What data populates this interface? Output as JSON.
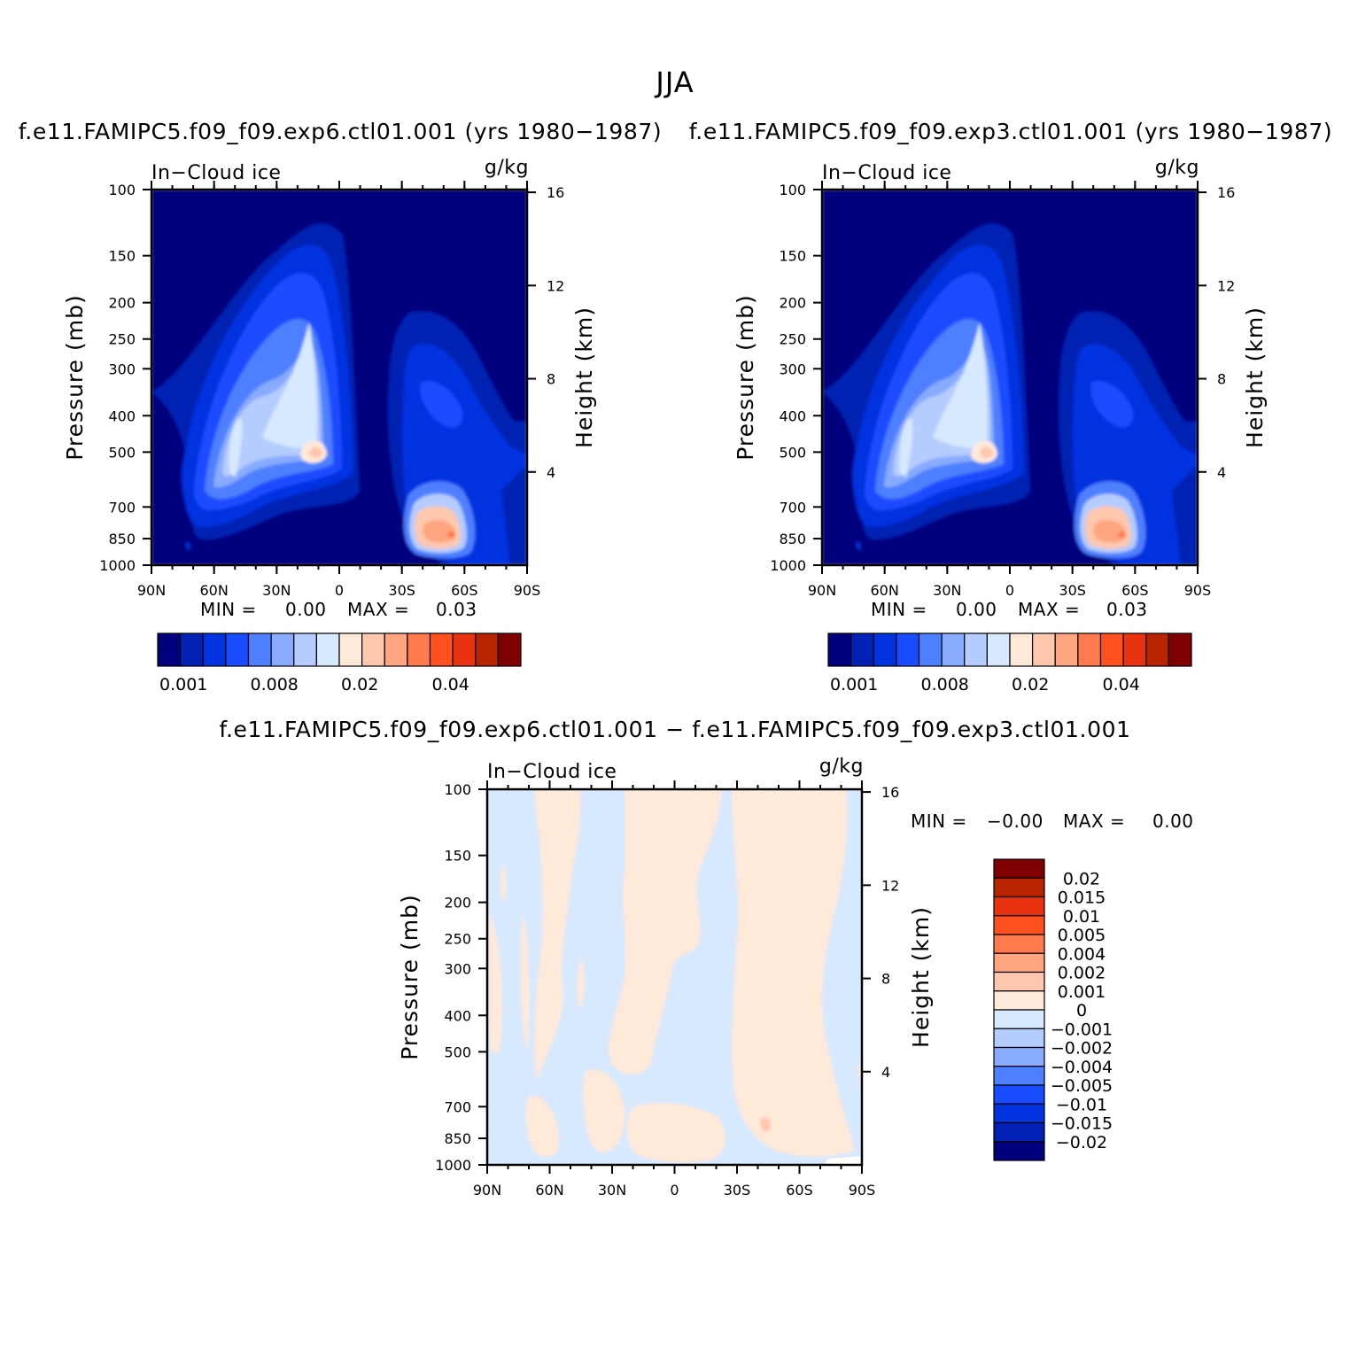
{
  "figure_title": "JJA",
  "panel_titles": [
    "f.e11.FAMIPC5.f09_f09.exp6.ctl01.001 (yrs 1980−1987)",
    "f.e11.FAMIPC5.f09_f09.exp3.ctl01.001 (yrs 1980−1987)"
  ],
  "diff_title": "f.e11.FAMIPC5.f09_f09.exp6.ctl01.001 − f.e11.FAMIPC5.f09_f09.exp3.ctl01.001",
  "panels": [
    {
      "stats": {
        "min_label": "MIN =",
        "min_value": "0.00",
        "max_label": "MAX =",
        "max_value": "0.03"
      }
    },
    {
      "stats": {
        "min_label": "MIN =",
        "min_value": "0.00",
        "max_label": "MAX =",
        "max_value": "0.03"
      }
    },
    {
      "stats": {
        "min_label": "MIN =",
        "min_value": "−0.00",
        "max_label": "MAX =",
        "max_value": "0.00"
      }
    }
  ],
  "chart_data": {
    "type": "heatmap",
    "variable_label": "In−Cloud ice",
    "units_label": "g/kg",
    "ylabel": "Pressure (mb)",
    "ylabel_right": "Height (km)",
    "x_ticks": [
      "90N",
      "60N",
      "30N",
      "0",
      "30S",
      "60S",
      "90S"
    ],
    "x_range": [
      90,
      -90
    ],
    "y_ticks_pressure": [
      100,
      150,
      200,
      250,
      300,
      400,
      500,
      700,
      850,
      1000
    ],
    "y_range_pressure": [
      1000,
      100
    ],
    "y_scale": "log",
    "y_ticks_height": [
      16,
      12,
      8,
      4
    ],
    "abs_colorbar": {
      "colors": [
        "#00007f",
        "#0021b3",
        "#0033e0",
        "#1a4cff",
        "#4d7fff",
        "#88aaff",
        "#b5ccff",
        "#d7e9ff",
        "#ffe9d9",
        "#ffc7ad",
        "#ffa57f",
        "#ff7b4d",
        "#ff5020",
        "#e83210",
        "#b82400",
        "#7f0000"
      ],
      "labels": [
        "0.001",
        "0.008",
        "0.02",
        "0.04"
      ]
    },
    "diff_colorbar": {
      "colors": [
        "#00007f",
        "#0021b3",
        "#0033e0",
        "#1a4cff",
        "#4d7fff",
        "#88aaff",
        "#b5ccff",
        "#d7e9ff",
        "#ffe9d9",
        "#ffc7ad",
        "#ffa57f",
        "#ff7b4d",
        "#ff5020",
        "#e83210",
        "#b82400",
        "#7f0000"
      ],
      "labels": [
        "0.02",
        "0.015",
        "0.01",
        "0.005",
        "0.004",
        "0.002",
        "0.001",
        "0",
        "−0.001",
        "−0.002",
        "−0.004",
        "−0.005",
        "−0.01",
        "−0.015",
        "−0.02"
      ]
    }
  }
}
